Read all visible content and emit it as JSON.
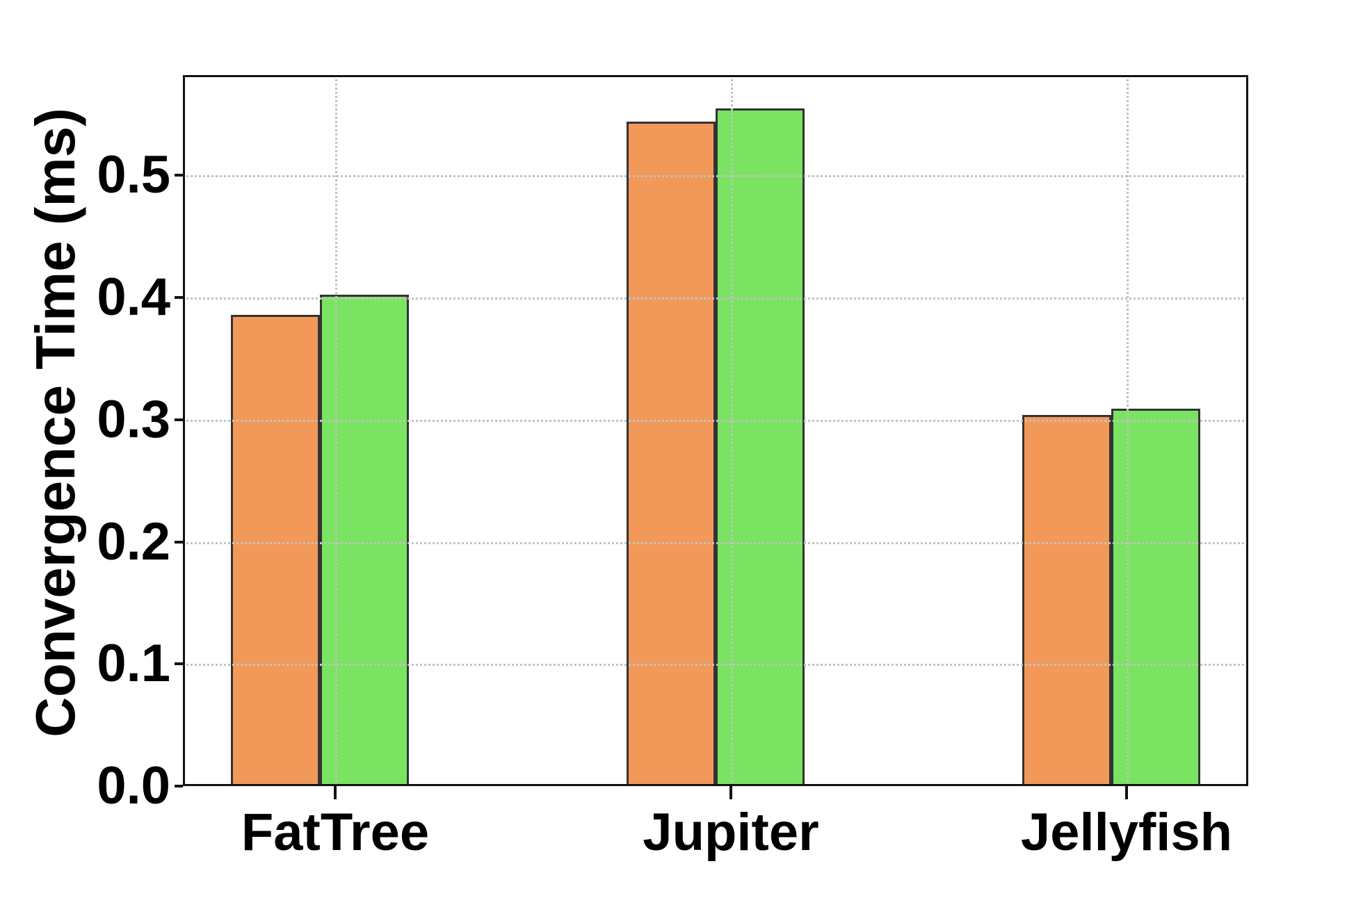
{
  "chart_data": {
    "type": "bar",
    "title": "",
    "categories": [
      "FatTree",
      "Jupiter",
      "Jellyfish"
    ],
    "series": [
      {
        "name": "orange",
        "color": "#F2995A",
        "values": [
          0.386,
          0.544,
          0.304
        ]
      },
      {
        "name": "green",
        "color": "#7BE362",
        "values": [
          0.402,
          0.555,
          0.309
        ]
      }
    ],
    "xlabel": "",
    "ylabel": "Convergence Time (ms)",
    "yticks": [
      0.0,
      0.1,
      0.2,
      0.3,
      0.4,
      0.5
    ],
    "ytick_labels": [
      "0.0",
      "0.1",
      "0.2",
      "0.3",
      "0.4",
      "0.5"
    ],
    "ylim": [
      0,
      0.582
    ],
    "grid": "dotted",
    "grid_above_bars": true,
    "legend": "none",
    "colors": {
      "bar_edge": "#333333",
      "grid": "#c2c2c2",
      "spine": "#111111",
      "text": "#000000",
      "background": "#ffffff"
    }
  }
}
